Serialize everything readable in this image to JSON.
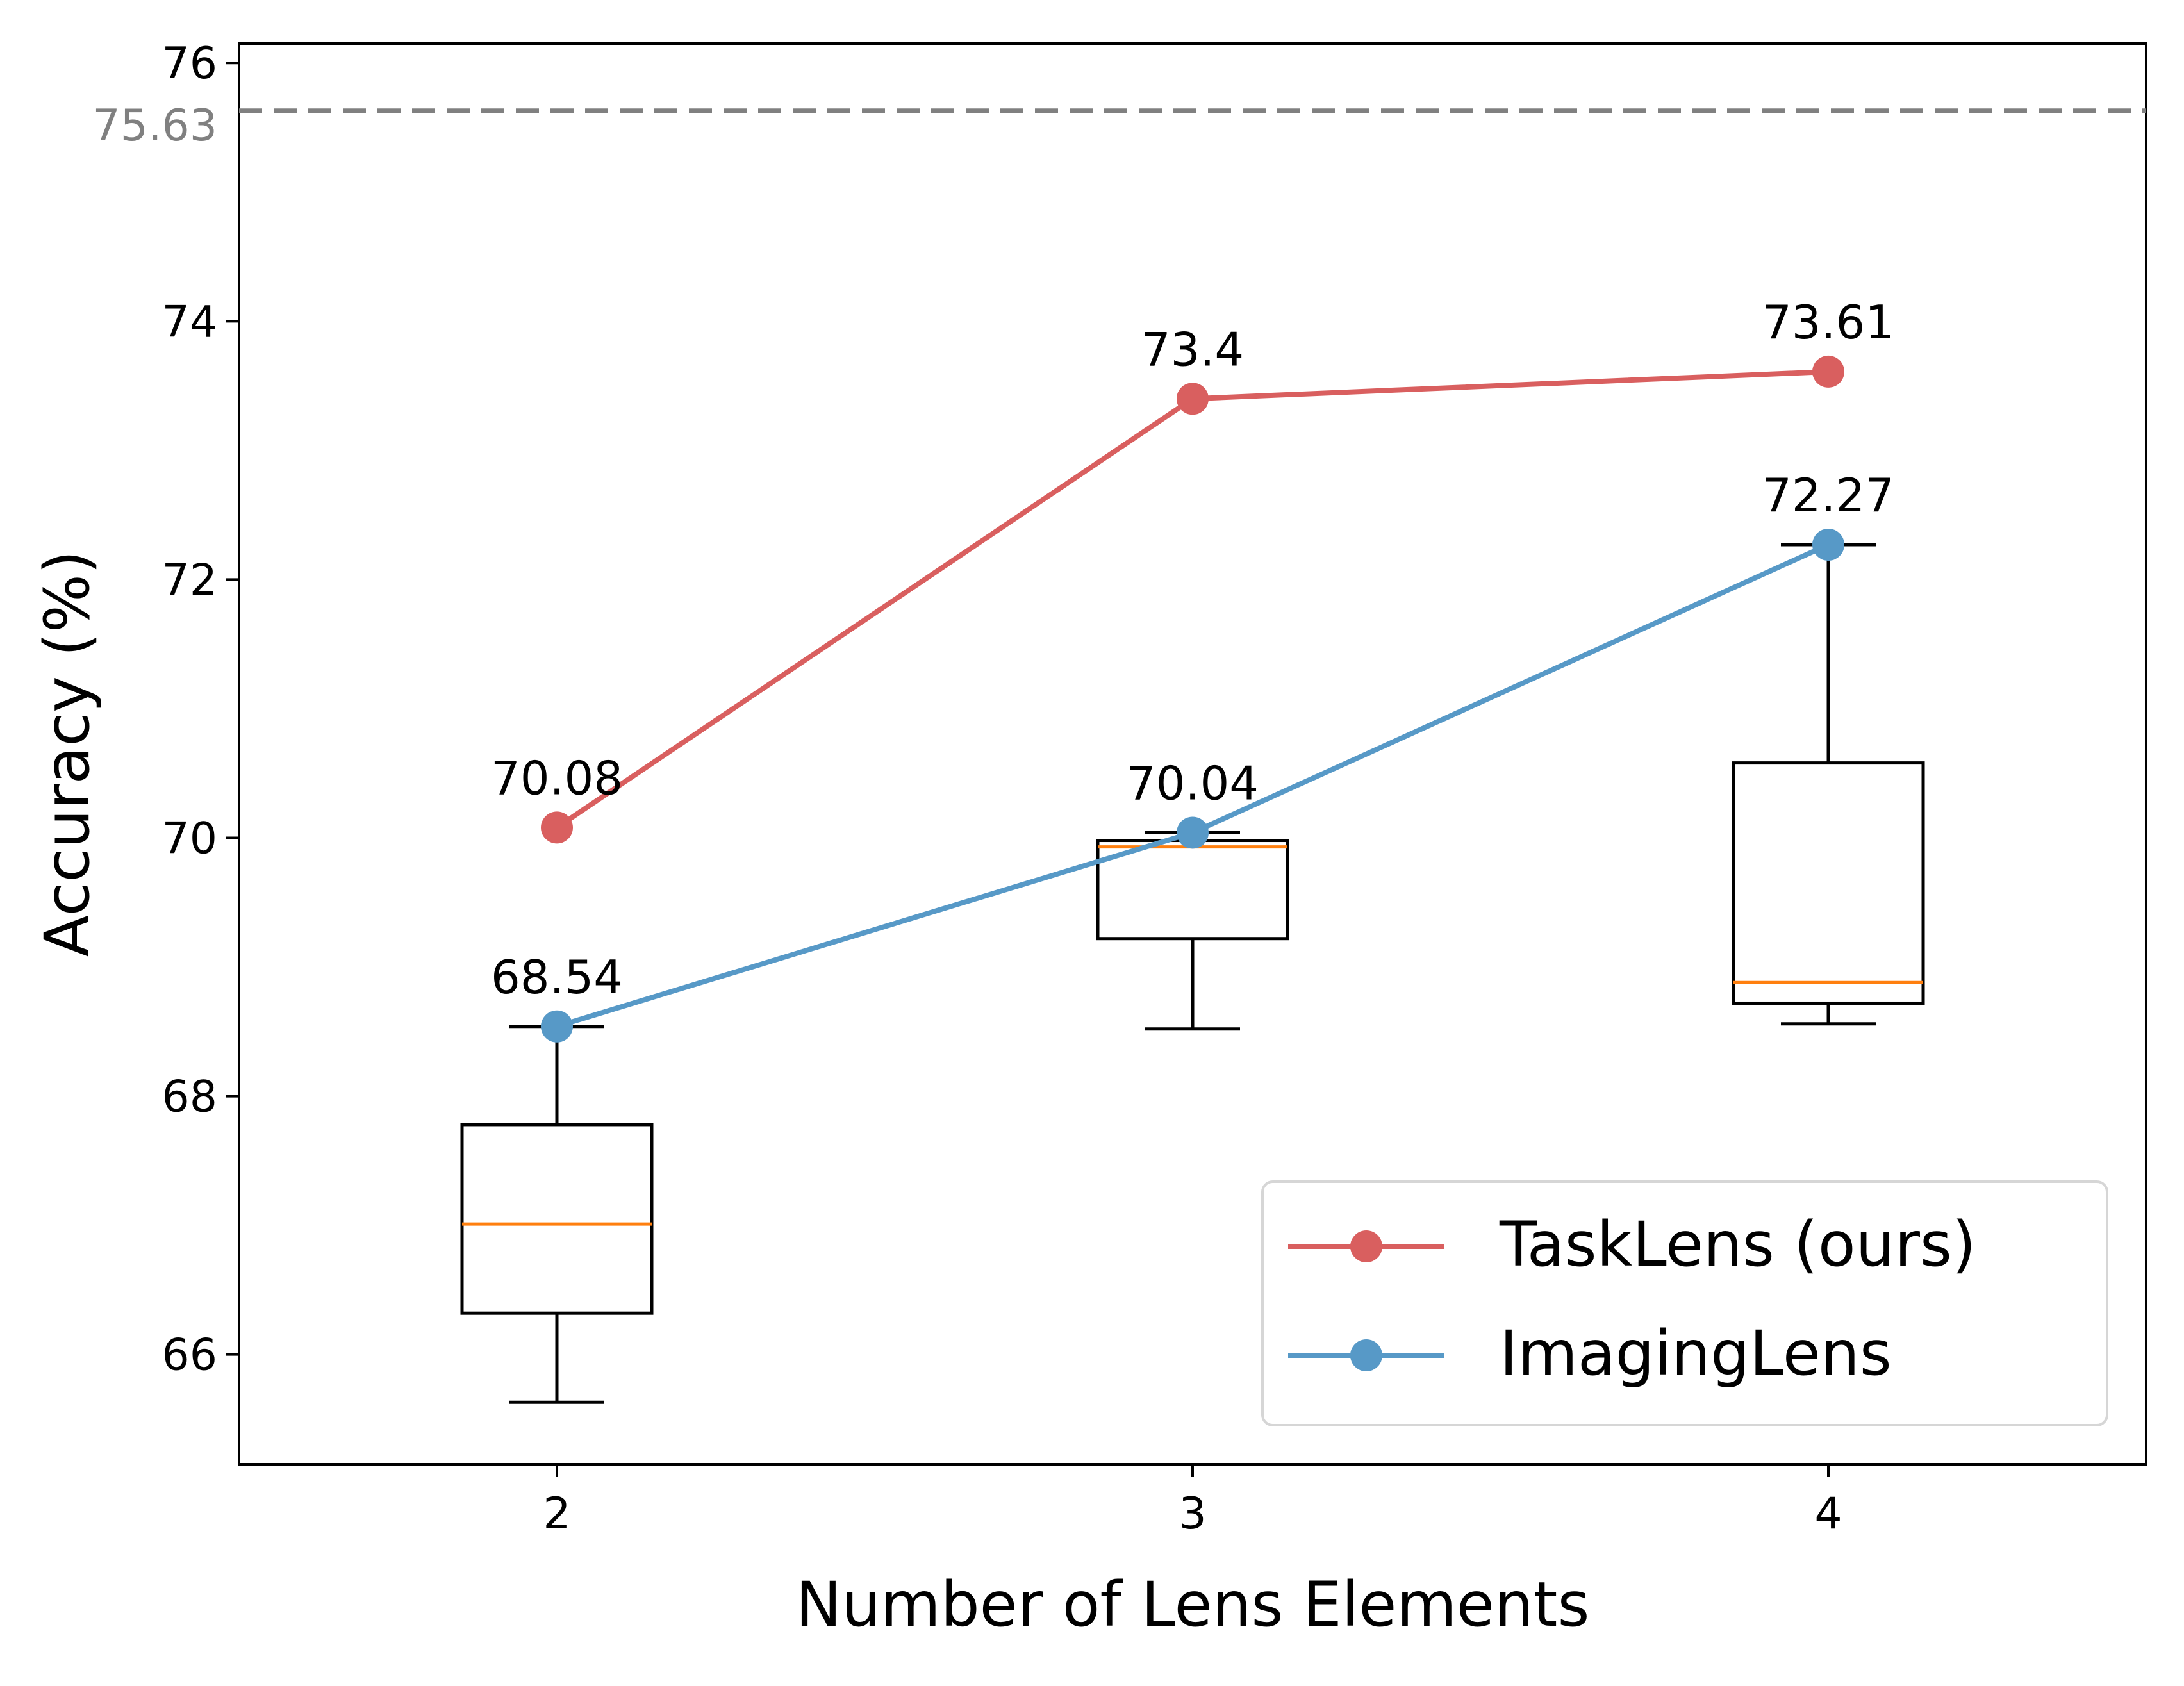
{
  "chart_data": {
    "type": "line",
    "xlabel": "Number of Lens Elements",
    "ylabel": "Accuracy (%)",
    "xlim": [
      1.5,
      4.5
    ],
    "ylim": [
      65.15,
      76.15
    ],
    "x_ticks": [
      2,
      3,
      4
    ],
    "x_tick_labels": [
      "2",
      "3",
      "4"
    ],
    "y_ticks": [
      66,
      68,
      70,
      72,
      74,
      76
    ],
    "y_tick_labels": [
      "66",
      "68",
      "70",
      "72",
      "74",
      "76"
    ],
    "grid": false,
    "legend_position": "lower-right",
    "reference_line": {
      "value": 75.63,
      "label": "75.63",
      "color": "#808080",
      "style": "dashed"
    },
    "series": [
      {
        "name": "TaskLens (ours)",
        "color": "#d95f5f",
        "x": [
          2,
          3,
          4
        ],
        "y": [
          70.08,
          73.4,
          73.61
        ],
        "labels": [
          "70.08",
          "73.4",
          "73.61"
        ]
      },
      {
        "name": "ImagingLens",
        "color": "#5799c7",
        "x": [
          2,
          3,
          4
        ],
        "y": [
          68.54,
          70.04,
          72.27
        ],
        "labels": [
          "68.54",
          "70.04",
          "72.27"
        ]
      }
    ],
    "boxplots": {
      "box_color": "#000000",
      "median_color": "#ff7f0e",
      "items": [
        {
          "x": 2,
          "whisker_low": 65.63,
          "q1": 66.32,
          "median": 67.01,
          "q3": 67.78,
          "whisker_high": 68.54
        },
        {
          "x": 3,
          "whisker_low": 68.52,
          "q1": 69.22,
          "median": 69.93,
          "q3": 69.98,
          "whisker_high": 70.04
        },
        {
          "x": 4,
          "whisker_low": 68.56,
          "q1": 68.72,
          "median": 68.88,
          "q3": 70.58,
          "whisker_high": 72.27
        }
      ]
    }
  }
}
